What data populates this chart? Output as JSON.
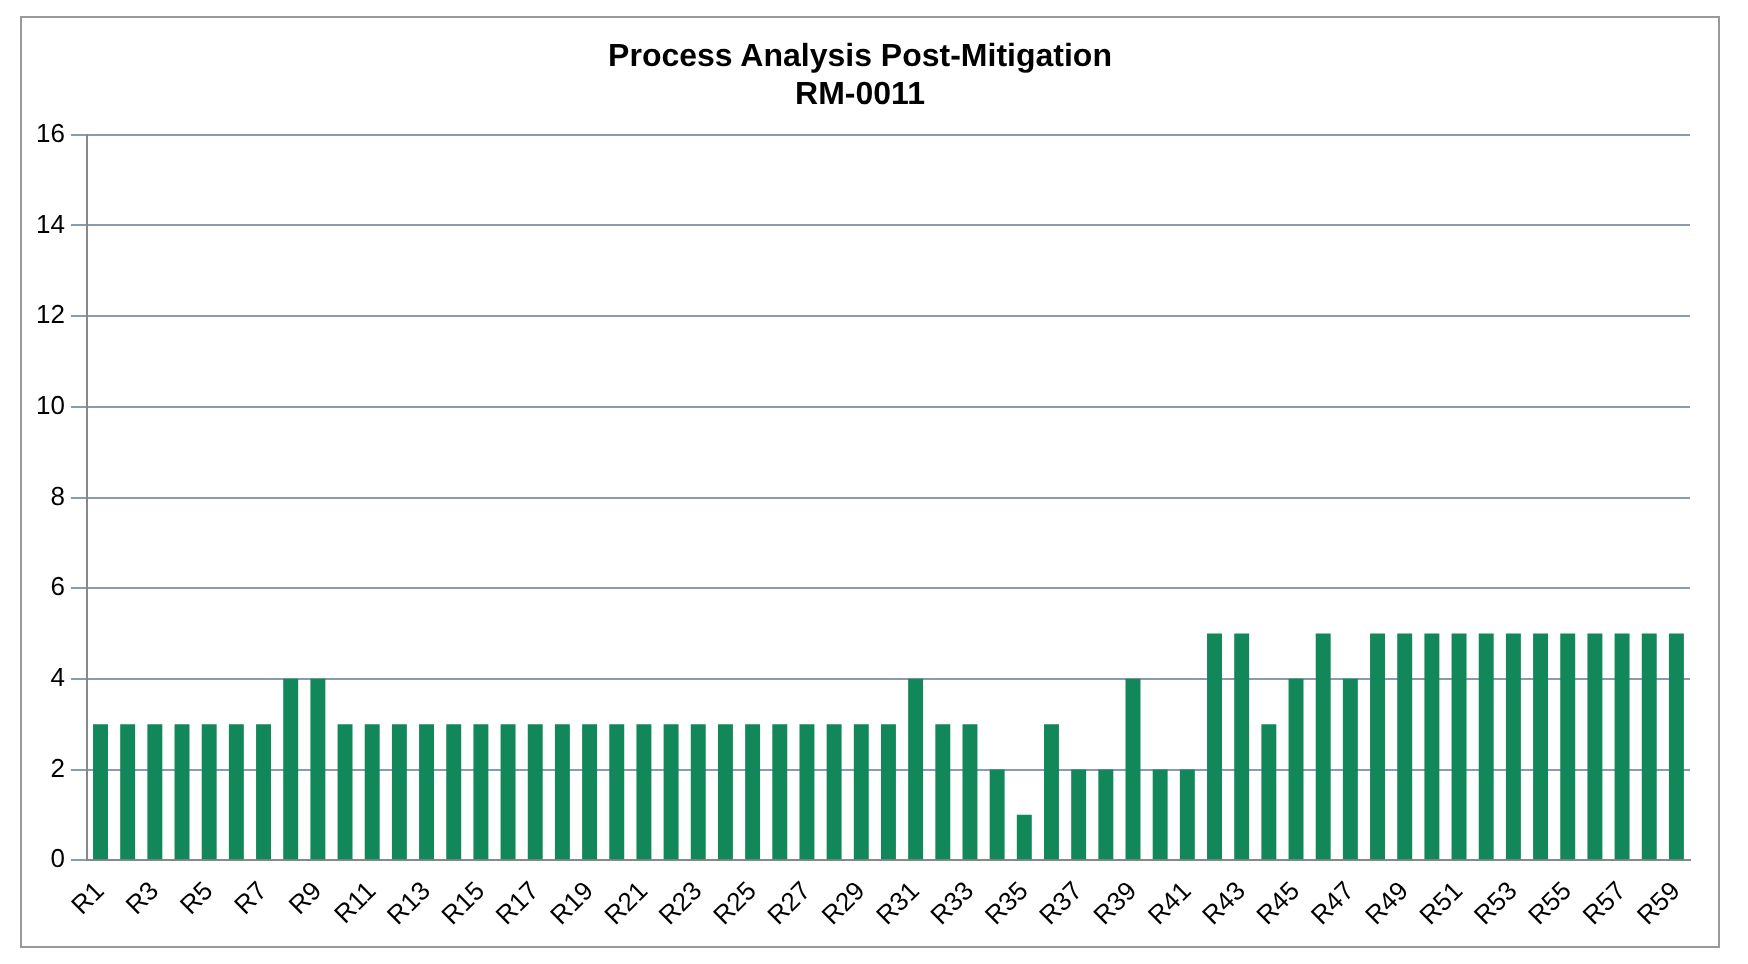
{
  "chart_data": {
    "type": "bar",
    "title": "Process Analysis Post-Mitigation\nRM-0011",
    "categories": [
      "R1",
      null,
      "R3",
      null,
      "R5",
      null,
      "R7",
      null,
      "R9",
      null,
      "R11",
      null,
      "R13",
      null,
      "R15",
      null,
      "R17",
      null,
      "R19",
      null,
      "R21",
      null,
      "R23",
      null,
      "R25",
      null,
      "R27",
      null,
      "R29",
      null,
      "R31",
      null,
      "R33",
      null,
      "R35",
      null,
      "R37",
      null,
      "R39",
      null,
      "R41",
      null,
      "R43",
      null,
      "R45",
      null,
      "R47",
      null,
      "R49",
      null,
      "R51",
      null,
      "R53",
      null,
      "R55",
      null,
      "R57",
      null,
      "R59"
    ],
    "values": [
      3,
      3,
      3,
      3,
      3,
      3,
      3,
      4,
      4,
      3,
      3,
      3,
      3,
      3,
      3,
      3,
      3,
      3,
      3,
      3,
      3,
      3,
      3,
      3,
      3,
      3,
      3,
      3,
      3,
      3,
      4,
      3,
      3,
      2,
      1,
      3,
      2,
      2,
      4,
      2,
      2,
      5,
      5,
      3,
      4,
      5,
      4,
      5,
      5,
      5,
      5,
      5,
      5,
      5,
      5,
      5,
      5,
      5,
      5
    ],
    "color": "#12875a",
    "ylim": [
      0,
      16
    ],
    "yticks": [
      0,
      2,
      4,
      6,
      8,
      10,
      12,
      14,
      16
    ],
    "grid": "y",
    "legend": false
  }
}
